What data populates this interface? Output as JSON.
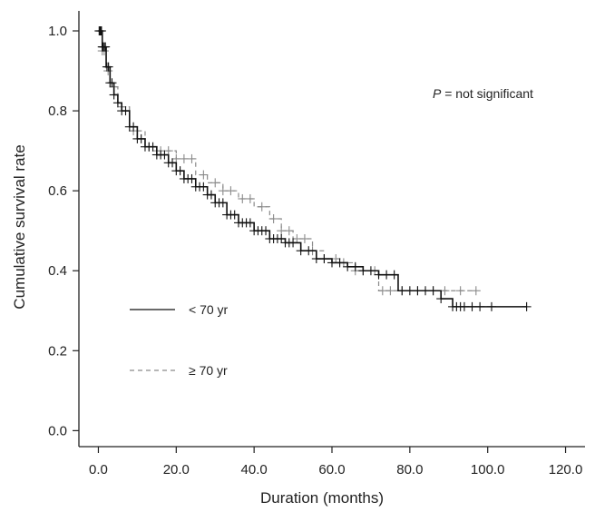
{
  "chart_data": {
    "type": "line",
    "subtype": "kaplan-meier",
    "title": "",
    "xlabel": "Duration (months)",
    "ylabel": "Cumulative survival rate",
    "xlim": [
      -5,
      125
    ],
    "ylim": [
      -0.04,
      1.05
    ],
    "xticks": [
      0,
      20,
      40,
      60,
      80,
      100,
      120
    ],
    "xtick_labels": [
      "0.0",
      "20.0",
      "40.0",
      "60.0",
      "80.0",
      "100.0",
      "120.0"
    ],
    "yticks": [
      0.0,
      0.2,
      0.4,
      0.6,
      0.8,
      1.0
    ],
    "ytick_labels": [
      "0.0",
      "0.2",
      "0.4",
      "0.6",
      "0.8",
      "1.0"
    ],
    "grid": false,
    "legend_position": "lower-left",
    "annotation": {
      "italic": "P",
      "text": " = not significant"
    },
    "series": [
      {
        "name": "< 70 yr",
        "color": "#111111",
        "dash": "solid",
        "x": [
          0,
          1,
          2,
          3,
          4,
          5,
          6,
          8,
          10,
          12,
          15,
          18,
          20,
          22,
          25,
          28,
          30,
          33,
          36,
          40,
          44,
          48,
          52,
          56,
          60,
          64,
          68,
          72,
          76,
          77,
          80,
          85,
          88,
          90,
          91,
          92,
          100,
          110
        ],
        "y": [
          1.0,
          0.96,
          0.91,
          0.87,
          0.84,
          0.82,
          0.8,
          0.76,
          0.73,
          0.71,
          0.69,
          0.67,
          0.65,
          0.63,
          0.61,
          0.59,
          0.57,
          0.54,
          0.52,
          0.5,
          0.48,
          0.47,
          0.45,
          0.43,
          0.42,
          0.41,
          0.4,
          0.39,
          0.39,
          0.35,
          0.35,
          0.35,
          0.33,
          0.33,
          0.31,
          0.31,
          0.31,
          0.31
        ],
        "censor_x": [
          0.2,
          0.4,
          0.6,
          0.8,
          1,
          1.2,
          1.5,
          1.8,
          2.2,
          2.6,
          3,
          3.5,
          4,
          5,
          6,
          7,
          8,
          9,
          10,
          11,
          12,
          13,
          14,
          15,
          16,
          17,
          18,
          19,
          20,
          21,
          22,
          23,
          24,
          25,
          26,
          27,
          28,
          29,
          30,
          31,
          32,
          33,
          34,
          35,
          36,
          37,
          38,
          39,
          40,
          41,
          42,
          43,
          44,
          45,
          46,
          47,
          48,
          49,
          50,
          52,
          54,
          56,
          58,
          60,
          62,
          64,
          66,
          68,
          70,
          72,
          74,
          76,
          78,
          80,
          82,
          84,
          86,
          88,
          91,
          92,
          93,
          94,
          96,
          98,
          101,
          110
        ]
      },
      {
        "name": "≥ 70 yr",
        "color": "#8a8a8a",
        "dash": "dashed",
        "x": [
          0,
          1,
          2,
          3,
          5,
          8,
          12,
          15,
          20,
          25,
          28,
          32,
          36,
          40,
          44,
          47,
          50,
          55,
          58,
          62,
          66,
          70,
          72,
          74,
          80,
          90,
          97
        ],
        "y": [
          1.0,
          0.95,
          0.9,
          0.86,
          0.81,
          0.75,
          0.71,
          0.7,
          0.68,
          0.64,
          0.62,
          0.6,
          0.58,
          0.56,
          0.53,
          0.5,
          0.48,
          0.45,
          0.43,
          0.42,
          0.4,
          0.4,
          0.35,
          0.35,
          0.35,
          0.35,
          0.35
        ],
        "censor_x": [
          0.5,
          1,
          1.5,
          2.5,
          4,
          6,
          9,
          13,
          15,
          16,
          18,
          20,
          22,
          24,
          27,
          30,
          32,
          34,
          37,
          39,
          42,
          45,
          47,
          49,
          51,
          53,
          55,
          58,
          61,
          63,
          66,
          68,
          71,
          73,
          75,
          78,
          82,
          86,
          89,
          93,
          97
        ]
      }
    ]
  }
}
